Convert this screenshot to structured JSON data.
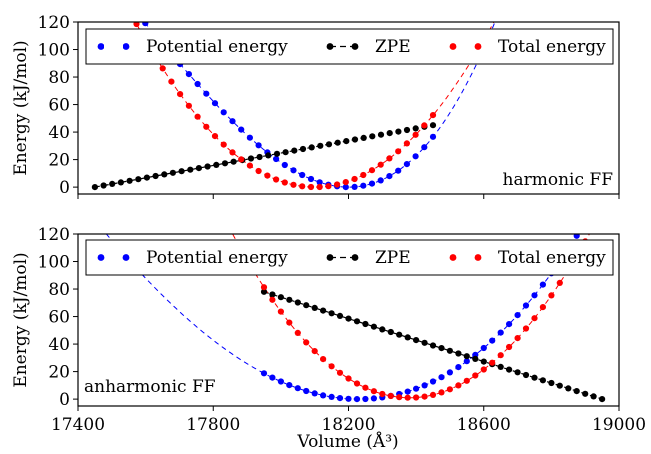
{
  "chart_data": [
    {
      "type": "line",
      "annotation": "harmonic FF",
      "ylabel": "Energy (kJ/mol)",
      "xlim": [
        17400,
        19000
      ],
      "ylim": [
        -5,
        120
      ],
      "yticks": [
        "0",
        "20",
        "40",
        "60",
        "80",
        "100",
        "120"
      ],
      "legend": {
        "position": "top",
        "entries": [
          "Potential energy",
          "ZPE",
          "Total energy"
        ]
      },
      "colors": {
        "potential": "#0000ff",
        "zpe": "#000000",
        "total": "#ff0000"
      },
      "series": [
        {
          "name": "Potential energy",
          "color": "#0000ff",
          "x_from": 17470,
          "x_to": 18450,
          "points": 39,
          "fit": {
            "vmin": 18200,
            "emin": 0,
            "a": 0.00051,
            "b": 3e-07,
            "x_from": 17300,
            "x_to": 19000
          }
        },
        {
          "name": "ZPE",
          "color": "#000000",
          "x_from": 17450,
          "x_to": 18450,
          "points": 40,
          "y_from": 0,
          "y_to": 45
        },
        {
          "name": "Total energy",
          "color": "#ff0000",
          "x_from": 17470,
          "x_to": 18450,
          "points": 39,
          "fit": {
            "vmin": 18100,
            "emin": 0,
            "a": 0.000427,
            "b": 0,
            "x_from": 17300,
            "x_to": 19000
          }
        }
      ]
    },
    {
      "type": "line",
      "annotation": "anharmonic FF",
      "xlabel": "Volume (Å³)",
      "ylabel": "Energy (kJ/mol)",
      "xlim": [
        17400,
        19000
      ],
      "ylim": [
        -5,
        120
      ],
      "xticks": [
        "17400",
        "17800",
        "18200",
        "18600",
        "19000"
      ],
      "yticks": [
        "0",
        "20",
        "40",
        "60",
        "80",
        "100",
        "120"
      ],
      "legend": {
        "position": "top",
        "entries": [
          "Potential energy",
          "ZPE",
          "Total energy"
        ]
      },
      "colors": {
        "potential": "#0000ff",
        "zpe": "#000000",
        "total": "#ff0000"
      },
      "series": [
        {
          "name": "Potential energy",
          "color": "#0000ff",
          "x_from": 17950,
          "x_to": 18950,
          "points": 41,
          "fit": {
            "vmin": 18230,
            "emin": 0,
            "a": 0.000253,
            "b": 5e-08,
            "x_from": 17400,
            "x_to": 19000
          }
        },
        {
          "name": "ZPE",
          "color": "#000000",
          "x_from": 17950,
          "x_to": 18950,
          "points": 41,
          "y_from": 78,
          "y_to": 0
        },
        {
          "name": "Total energy",
          "color": "#ff0000",
          "x_from": 17950,
          "x_to": 18950,
          "points": 41,
          "fit": {
            "vmin": 18380,
            "emin": 1,
            "a": 0.000428,
            "b": -1.5e-08,
            "x_from": 17400,
            "x_to": 19000
          }
        }
      ]
    }
  ]
}
